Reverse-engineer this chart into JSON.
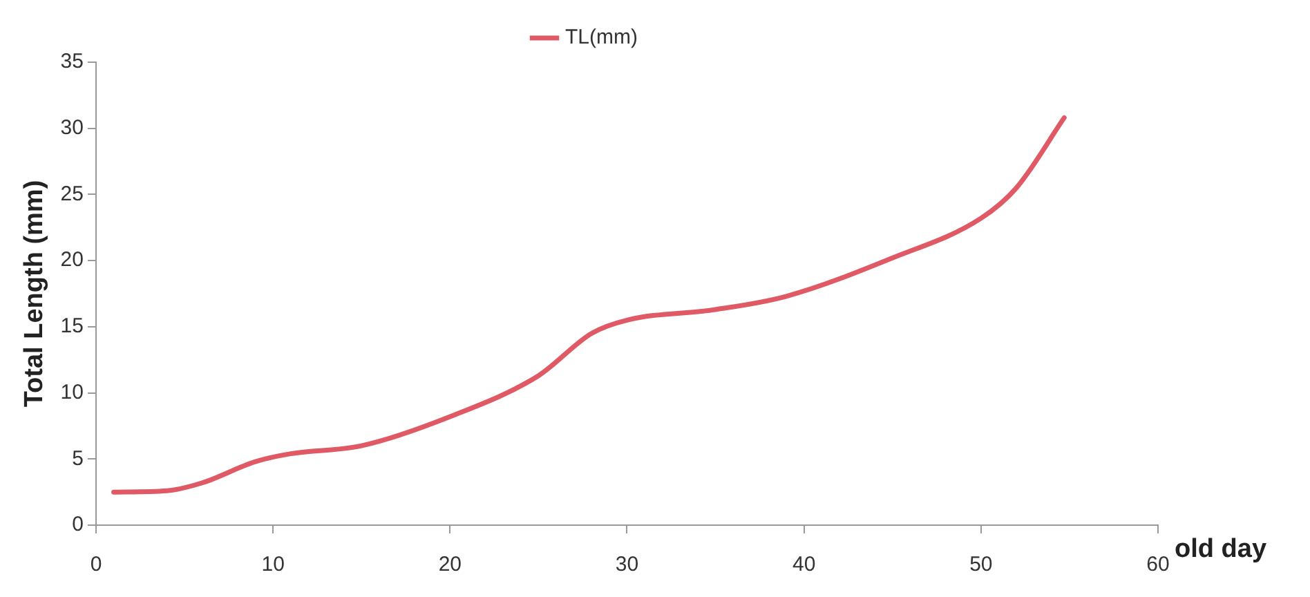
{
  "chart_data": {
    "type": "line",
    "xlabel": "old day",
    "ylabel": "Total Length (mm)",
    "x": [
      1,
      4,
      6,
      9,
      11,
      15,
      20,
      25,
      28,
      30,
      35,
      39,
      45,
      50,
      52,
      54.7
    ],
    "series": [
      {
        "name": "TL(mm)",
        "color": "#e05a66",
        "values": [
          2.5,
          2.6,
          3.2,
          4.8,
          5.4,
          6.0,
          8.2,
          11.3,
          14.5,
          15.5,
          16.3,
          17.3,
          20.2,
          23.2,
          25.5,
          30.8
        ]
      }
    ],
    "xlim": [
      0,
      60
    ],
    "xticks": [
      0,
      10,
      20,
      30,
      40,
      50,
      60
    ],
    "ylim": [
      0,
      35
    ],
    "yticks": [
      0,
      5,
      10,
      15,
      20,
      25,
      30,
      35
    ],
    "grid": false,
    "legend": "top",
    "marker": "none",
    "line_style": "solid"
  }
}
